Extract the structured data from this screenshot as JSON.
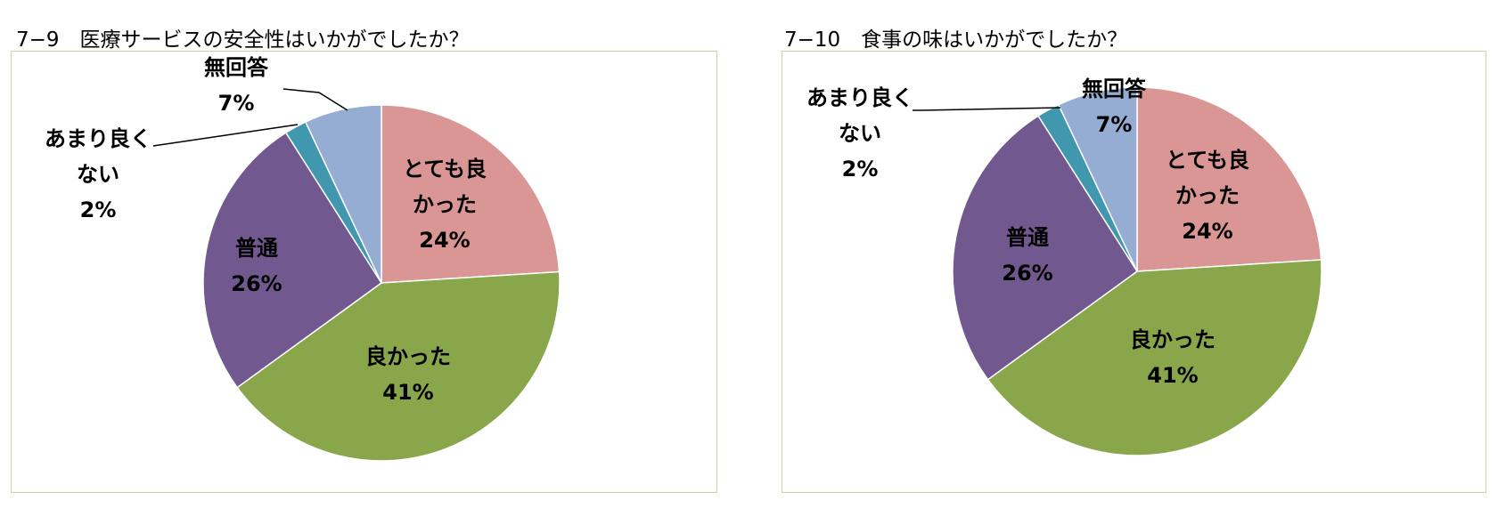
{
  "chart_data": [
    {
      "type": "pie",
      "title": "7−9　医療サービスの安全性はいかがでしたか？",
      "slices": [
        {
          "label": "とても良かった",
          "label_lines": [
            "とても良",
            "かった"
          ],
          "value": 24,
          "pct_label": "24%",
          "color": "#d99694"
        },
        {
          "label": "良かった",
          "label_lines": [
            "良かった"
          ],
          "value": 41,
          "pct_label": "41%",
          "color": "#8aa64b"
        },
        {
          "label": "普通",
          "label_lines": [
            "普通"
          ],
          "value": 26,
          "pct_label": "26%",
          "color": "#71588f"
        },
        {
          "label": "あまり良くない",
          "label_lines": [
            "あまり良く",
            "ない"
          ],
          "value": 2,
          "pct_label": "2%",
          "color": "#4198ae"
        },
        {
          "label": "無回答",
          "label_lines": [
            "無回答"
          ],
          "value": 7,
          "pct_label": "7%",
          "color": "#95acd3"
        }
      ]
    },
    {
      "type": "pie",
      "title": "7−10　食事の味はいかがでしたか？",
      "slices": [
        {
          "label": "とても良かった",
          "label_lines": [
            "とても良",
            "かった"
          ],
          "value": 24,
          "pct_label": "24%",
          "color": "#d99694"
        },
        {
          "label": "良かった",
          "label_lines": [
            "良かった"
          ],
          "value": 41,
          "pct_label": "41%",
          "color": "#8aa64b"
        },
        {
          "label": "普通",
          "label_lines": [
            "普通"
          ],
          "value": 26,
          "pct_label": "26%",
          "color": "#71588f"
        },
        {
          "label": "あまり良くない",
          "label_lines": [
            "あまり良く",
            "ない"
          ],
          "value": 2,
          "pct_label": "2%",
          "color": "#4198ae"
        },
        {
          "label": "無回答",
          "label_lines": [
            "無回答"
          ],
          "value": 7,
          "pct_label": "7%",
          "color": "#95acd3"
        }
      ]
    }
  ]
}
